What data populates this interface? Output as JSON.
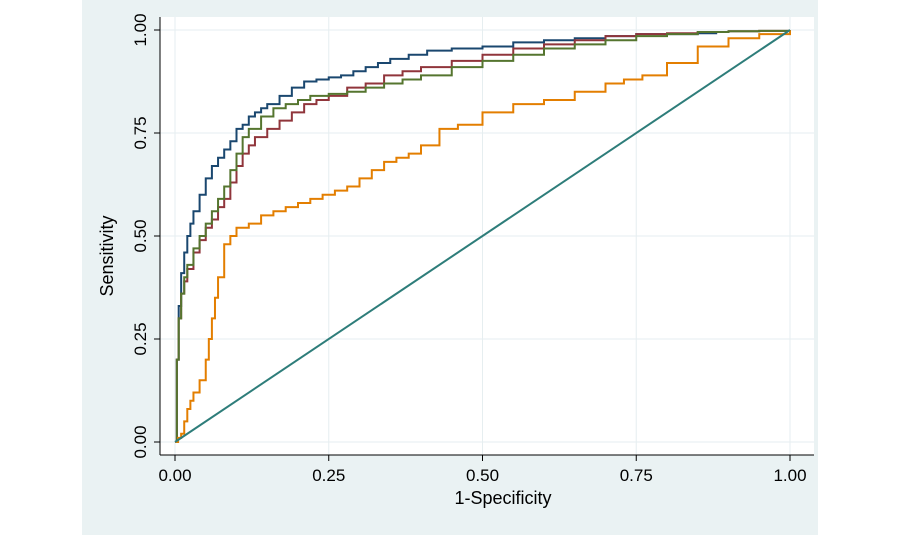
{
  "chart_data": {
    "type": "line",
    "title": "",
    "xlabel": "1-Specificity",
    "ylabel": "Sensitivity",
    "xlim": [
      0,
      1
    ],
    "ylim": [
      0,
      1
    ],
    "xticks": [
      "0.00",
      "0.25",
      "0.50",
      "0.75",
      "1.00"
    ],
    "yticks": [
      "0.00",
      "0.25",
      "0.50",
      "0.75",
      "1.00"
    ],
    "grid": true,
    "legend": "none",
    "series": [
      {
        "name": "curve-blue",
        "color": "#1a476f",
        "x": [
          0,
          0.003,
          0.006,
          0.01,
          0.015,
          0.02,
          0.025,
          0.03,
          0.04,
          0.05,
          0.06,
          0.07,
          0.08,
          0.09,
          0.1,
          0.11,
          0.12,
          0.13,
          0.14,
          0.15,
          0.17,
          0.19,
          0.21,
          0.23,
          0.25,
          0.27,
          0.29,
          0.31,
          0.33,
          0.35,
          0.38,
          0.41,
          0.45,
          0.5,
          0.55,
          0.6,
          0.65,
          0.7,
          0.75,
          0.8,
          0.85,
          0.88
        ],
        "y": [
          0,
          0.2,
          0.33,
          0.41,
          0.46,
          0.5,
          0.53,
          0.56,
          0.6,
          0.64,
          0.67,
          0.69,
          0.71,
          0.73,
          0.76,
          0.77,
          0.79,
          0.8,
          0.81,
          0.82,
          0.84,
          0.86,
          0.875,
          0.88,
          0.885,
          0.89,
          0.9,
          0.91,
          0.92,
          0.93,
          0.94,
          0.95,
          0.955,
          0.96,
          0.97,
          0.975,
          0.98,
          0.985,
          0.99,
          0.99,
          0.992,
          0.993
        ]
      },
      {
        "name": "curve-red",
        "color": "#90353b",
        "x": [
          0,
          0.003,
          0.006,
          0.01,
          0.015,
          0.02,
          0.03,
          0.04,
          0.05,
          0.06,
          0.07,
          0.08,
          0.09,
          0.1,
          0.11,
          0.12,
          0.13,
          0.15,
          0.17,
          0.19,
          0.21,
          0.23,
          0.25,
          0.28,
          0.31,
          0.34,
          0.37,
          0.4,
          0.45,
          0.5,
          0.55,
          0.6,
          0.65,
          0.7,
          0.75,
          0.8,
          0.85,
          0.9,
          0.95,
          1.0
        ],
        "y": [
          0,
          0.2,
          0.3,
          0.36,
          0.39,
          0.42,
          0.46,
          0.49,
          0.52,
          0.54,
          0.57,
          0.59,
          0.63,
          0.67,
          0.7,
          0.72,
          0.74,
          0.76,
          0.78,
          0.8,
          0.82,
          0.83,
          0.84,
          0.86,
          0.87,
          0.89,
          0.9,
          0.91,
          0.925,
          0.94,
          0.955,
          0.965,
          0.975,
          0.985,
          0.99,
          0.992,
          0.995,
          0.997,
          0.998,
          1.0
        ]
      },
      {
        "name": "curve-green",
        "color": "#55752f",
        "x": [
          0,
          0.003,
          0.006,
          0.01,
          0.015,
          0.02,
          0.03,
          0.04,
          0.05,
          0.06,
          0.07,
          0.08,
          0.09,
          0.1,
          0.11,
          0.12,
          0.14,
          0.16,
          0.18,
          0.2,
          0.22,
          0.25,
          0.28,
          0.31,
          0.34,
          0.37,
          0.4,
          0.45,
          0.5,
          0.55,
          0.6,
          0.65,
          0.7,
          0.75,
          0.8,
          0.85,
          0.9,
          0.95,
          1.0
        ],
        "y": [
          0,
          0.2,
          0.3,
          0.36,
          0.4,
          0.43,
          0.47,
          0.5,
          0.53,
          0.56,
          0.59,
          0.62,
          0.66,
          0.7,
          0.74,
          0.76,
          0.79,
          0.81,
          0.82,
          0.83,
          0.84,
          0.845,
          0.85,
          0.86,
          0.87,
          0.88,
          0.89,
          0.91,
          0.925,
          0.94,
          0.955,
          0.965,
          0.975,
          0.985,
          0.99,
          0.995,
          0.997,
          0.998,
          1.0
        ]
      },
      {
        "name": "curve-orange",
        "color": "#e37e00",
        "x": [
          0,
          0.005,
          0.01,
          0.015,
          0.02,
          0.025,
          0.03,
          0.04,
          0.05,
          0.055,
          0.06,
          0.065,
          0.07,
          0.08,
          0.09,
          0.1,
          0.12,
          0.14,
          0.16,
          0.18,
          0.2,
          0.22,
          0.24,
          0.26,
          0.28,
          0.3,
          0.32,
          0.34,
          0.36,
          0.38,
          0.4,
          0.43,
          0.46,
          0.5,
          0.55,
          0.6,
          0.65,
          0.7,
          0.73,
          0.76,
          0.8,
          0.85,
          0.9,
          0.95,
          1.0
        ],
        "y": [
          0,
          0.01,
          0.02,
          0.05,
          0.08,
          0.1,
          0.12,
          0.15,
          0.2,
          0.25,
          0.3,
          0.35,
          0.4,
          0.48,
          0.5,
          0.52,
          0.53,
          0.55,
          0.56,
          0.57,
          0.58,
          0.59,
          0.6,
          0.61,
          0.62,
          0.64,
          0.66,
          0.68,
          0.69,
          0.7,
          0.72,
          0.76,
          0.77,
          0.8,
          0.82,
          0.83,
          0.85,
          0.87,
          0.88,
          0.89,
          0.92,
          0.96,
          0.98,
          0.99,
          1.0
        ]
      },
      {
        "name": "reference-line",
        "color": "#2e7d7a",
        "x": [
          0,
          1
        ],
        "y": [
          0,
          1
        ]
      }
    ]
  }
}
